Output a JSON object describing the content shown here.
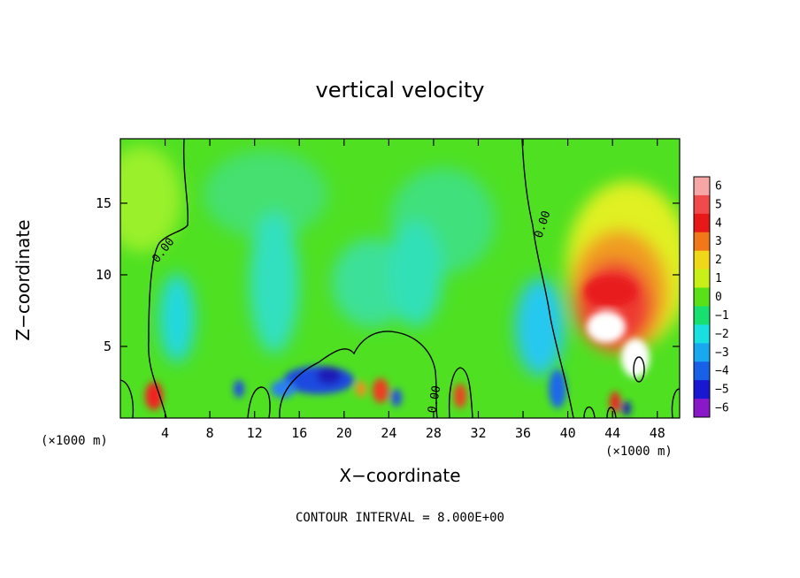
{
  "chart_data": {
    "type": "heatmap",
    "title": "vertical velocity",
    "xlabel": "X−coordinate",
    "ylabel": "Z−coordinate",
    "x_unit_left": "(×1000 m)",
    "x_unit_right": "(×1000 m)",
    "footer": "CONTOUR INTERVAL = 8.000E+00",
    "xlim": [
      0,
      50
    ],
    "ylim": [
      0,
      19.5
    ],
    "x_ticks": [
      4,
      8,
      12,
      16,
      20,
      24,
      28,
      32,
      36,
      40,
      44,
      48
    ],
    "x_tick_labels": [
      "4",
      "8",
      "12",
      "16",
      "20",
      "24",
      "28",
      "32",
      "36",
      "40",
      "44",
      "48"
    ],
    "y_ticks": [
      5,
      10,
      15
    ],
    "y_tick_labels": [
      "5",
      "10",
      "15"
    ],
    "contour_labels": [
      "0.00",
      "0.00",
      "0.00"
    ],
    "colorbar": {
      "levels": [
        6,
        5,
        4,
        3,
        2,
        1,
        0,
        -1,
        -2,
        -3,
        -4,
        -5,
        -6
      ],
      "labels": [
        "6",
        "5",
        "4",
        "3",
        "2",
        "1",
        "0",
        "−1",
        "−2",
        "−3",
        "−4",
        "−5",
        "−6"
      ],
      "colors": [
        "#f7a6a6",
        "#f04a4a",
        "#e81818",
        "#f07818",
        "#f0d818",
        "#c8f018",
        "#58e018",
        "#18e070",
        "#18e0e0",
        "#18a8f0",
        "#1860e8",
        "#1818d0",
        "#8818c8"
      ]
    }
  }
}
